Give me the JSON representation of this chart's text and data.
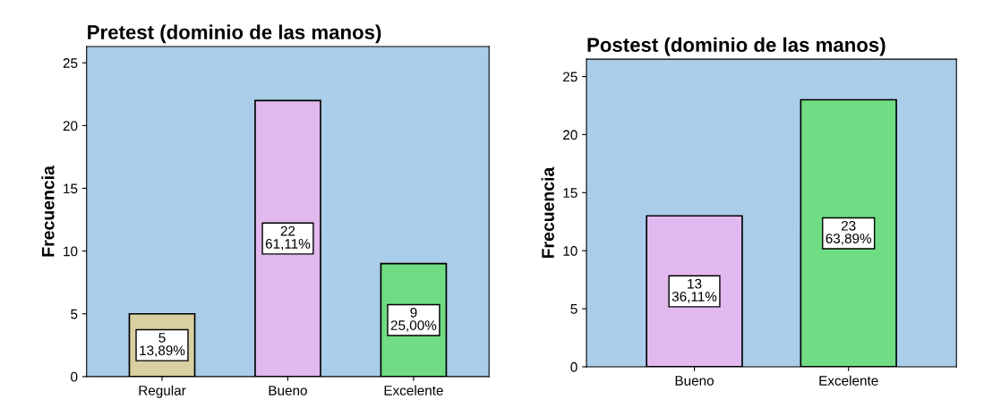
{
  "chart_data": [
    {
      "type": "bar",
      "title": "Pretest (dominio de las manos)",
      "ylabel": "Frecuencia",
      "categories": [
        "Regular",
        "Bueno",
        "Excelente"
      ],
      "values": [
        5,
        22,
        9
      ],
      "colors": [
        "#d8d0a0",
        "#e2b9ef",
        "#70dc84"
      ],
      "value_labels": [
        "5\n13,89%",
        "22\n61,11%",
        "9\n25,00%"
      ],
      "ylim": [
        0,
        26.3
      ],
      "yticks": [
        0,
        5,
        10,
        15,
        20,
        25
      ],
      "grid": false,
      "legend": false
    },
    {
      "type": "bar",
      "title": "Postest (dominio de las manos)",
      "ylabel": "Frecuencia",
      "categories": [
        "Bueno",
        "Excelente"
      ],
      "values": [
        13,
        23
      ],
      "colors": [
        "#e2b9ef",
        "#70dc84"
      ],
      "value_labels": [
        "13\n36,11%",
        "23\n63,89%"
      ],
      "ylim": [
        0,
        26.5
      ],
      "yticks": [
        0,
        5,
        10,
        15,
        20,
        25
      ],
      "grid": false,
      "legend": false
    }
  ]
}
